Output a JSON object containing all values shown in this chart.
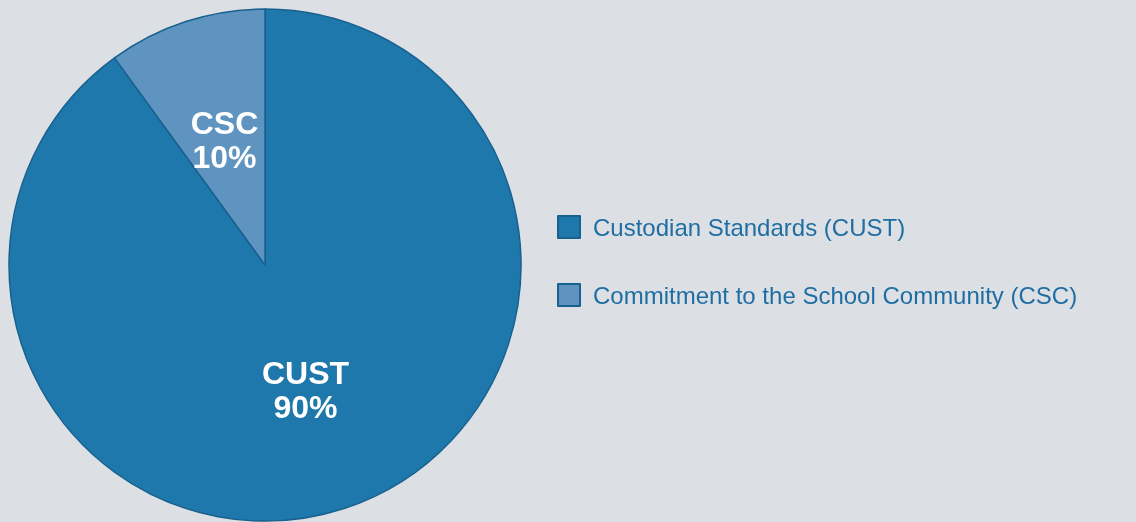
{
  "chart_data": {
    "type": "pie",
    "categories": [
      "Custodian Standards (CUST)",
      "Commitment to the School Community (CSC)"
    ],
    "values": [
      90,
      10
    ],
    "colors": [
      "#1f78ab",
      "#6094c0"
    ],
    "value_labels": [
      "CUST\n90%",
      "CSC\n10%"
    ],
    "legend": "right"
  }
}
